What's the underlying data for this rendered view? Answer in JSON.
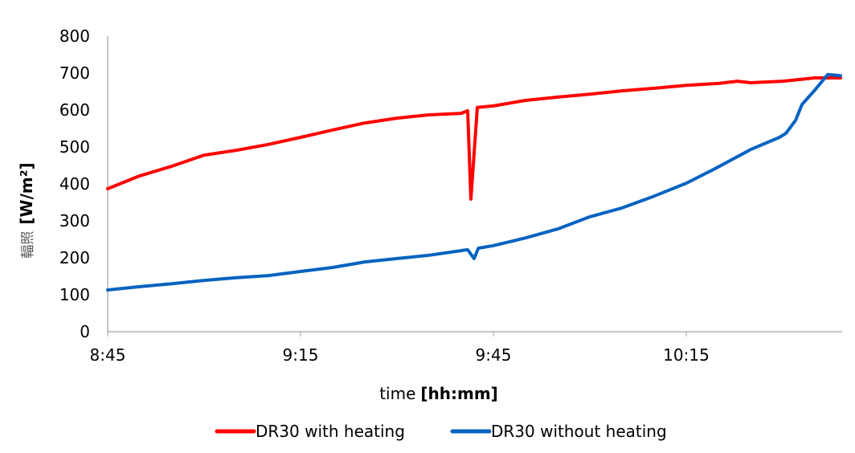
{
  "chart_data": {
    "type": "line",
    "title": "",
    "xlabel": "time",
    "xlabel_unit": "[hh:mm]",
    "ylabel": "輻照",
    "ylabel_unit": "[W/m²]",
    "ylim": [
      0,
      800
    ],
    "yticks": [
      "0",
      "100",
      "200",
      "300",
      "400",
      "500",
      "600",
      "700",
      "800"
    ],
    "xlim": [
      "8:45",
      "10:39"
    ],
    "xticks": [
      "8:45",
      "9:15",
      "9:45",
      "10:15"
    ],
    "grid": false,
    "legend_position": "bottom",
    "series": [
      {
        "name": "DR30 with heating",
        "color": "#ff0000",
        "x": [
          "8:45",
          "8:50",
          "8:55",
          "9:00",
          "9:05",
          "9:10",
          "9:15",
          "9:20",
          "9:25",
          "9:30",
          "9:35",
          "9:40",
          "9:41",
          "9:41:30",
          "9:42:30",
          "9:45",
          "9:50",
          "9:55",
          "10:00",
          "10:05",
          "10:10",
          "10:15",
          "10:20",
          "10:23",
          "10:25",
          "10:30",
          "10:35",
          "10:39"
        ],
        "values": [
          387,
          422,
          448,
          478,
          491,
          507,
          526,
          546,
          565,
          578,
          587,
          591,
          598,
          359,
          607,
          611,
          626,
          635,
          643,
          652,
          659,
          667,
          672,
          678,
          674,
          678,
          687,
          687
        ]
      },
      {
        "name": "DR30 without heating",
        "color": "#0563c1",
        "x": [
          "8:45",
          "8:50",
          "8:55",
          "9:00",
          "9:05",
          "9:10",
          "9:15",
          "9:20",
          "9:25",
          "9:30",
          "9:35",
          "9:41",
          "9:42",
          "9:42:40",
          "9:45",
          "9:50",
          "9:55",
          "10:00",
          "10:05",
          "10:10",
          "10:15",
          "10:20",
          "10:25",
          "10:29:30",
          "10:30:30",
          "10:32",
          "10:33",
          "10:35",
          "10:37",
          "10:39"
        ],
        "values": [
          113,
          122,
          130,
          139,
          146,
          152,
          163,
          174,
          189,
          198,
          207,
          222,
          198,
          226,
          233,
          254,
          278,
          311,
          335,
          367,
          402,
          446,
          493,
          526,
          537,
          572,
          615,
          654,
          696,
          693
        ]
      }
    ]
  }
}
